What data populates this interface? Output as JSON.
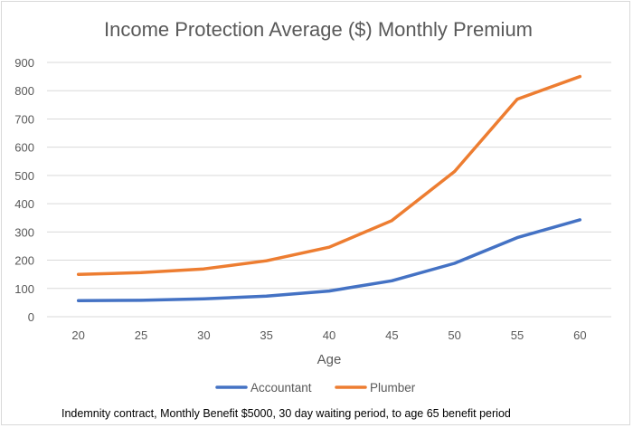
{
  "chart_data": {
    "type": "line",
    "title": "Income Protection Average ($) Monthly Premium",
    "xlabel": "Age",
    "ylabel": "",
    "categories": [
      "20",
      "25",
      "30",
      "35",
      "40",
      "45",
      "50",
      "55",
      "60"
    ],
    "ylim": [
      0,
      900
    ],
    "yticks": [
      "0",
      "100",
      "200",
      "300",
      "400",
      "500",
      "600",
      "700",
      "800",
      "900"
    ],
    "grid": true,
    "legend_position": "bottom",
    "series": [
      {
        "name": "Accountant",
        "color": "#4472c4",
        "values": [
          57,
          58,
          63,
          73,
          91,
          127,
          189,
          280,
          343
        ]
      },
      {
        "name": "Plumber",
        "color": "#ed7d31",
        "values": [
          150,
          156,
          169,
          198,
          246,
          340,
          514,
          770,
          850
        ]
      }
    ]
  },
  "caption": "Indemnity contract, Monthly Benefit $5000, 30 day waiting period, to age 65 benefit period"
}
